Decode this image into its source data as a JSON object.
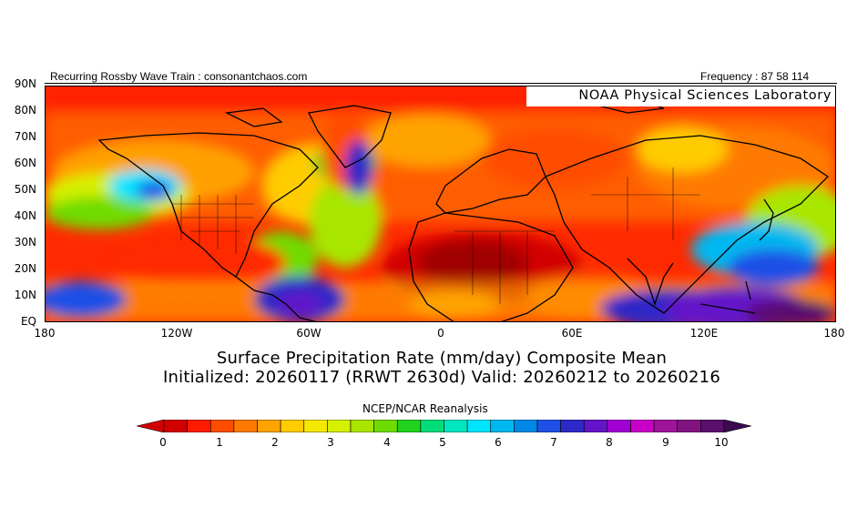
{
  "header": {
    "left_text": "Recurring Rossby Wave Train : consonantchaos.com",
    "right_text": "Frequency : 87 58 114",
    "lab_label": "NOAA Physical Sciences Laboratory"
  },
  "map": {
    "region": "Northern Hemisphere, 180W to 180E, EQ to 90N",
    "lat_labels": [
      "90N",
      "80N",
      "70N",
      "60N",
      "50N",
      "40N",
      "30N",
      "20N",
      "10N",
      "EQ"
    ],
    "lon_labels": [
      "180",
      "120W",
      "60W",
      "0",
      "60E",
      "120E",
      "180"
    ]
  },
  "titles": {
    "line1": "Surface Precipitation Rate (mm/day) Composite Mean",
    "line2": "Initialized: 20260117 (RRWT 2630d) Valid: 20260212 to 20260216",
    "source": "NCEP/NCAR Reanalysis"
  },
  "colorbar": {
    "labels": [
      "0",
      "1",
      "2",
      "3",
      "4",
      "5",
      "6",
      "7",
      "8",
      "9",
      "10"
    ],
    "colors": [
      "#d20000",
      "#ff1a00",
      "#ff4d00",
      "#ff7a00",
      "#ffa300",
      "#ffcc00",
      "#f5e800",
      "#d6f000",
      "#a8e600",
      "#6fdc00",
      "#20d21e",
      "#00dc78",
      "#00e6c0",
      "#00e5ff",
      "#00b8f0",
      "#0088e6",
      "#1e50e6",
      "#2d28c8",
      "#6414c8",
      "#a000d2",
      "#c800c8",
      "#a0149b",
      "#821482",
      "#5a0f6e"
    ],
    "min_color": "#d20000",
    "max_color": "#3c0a50"
  }
}
